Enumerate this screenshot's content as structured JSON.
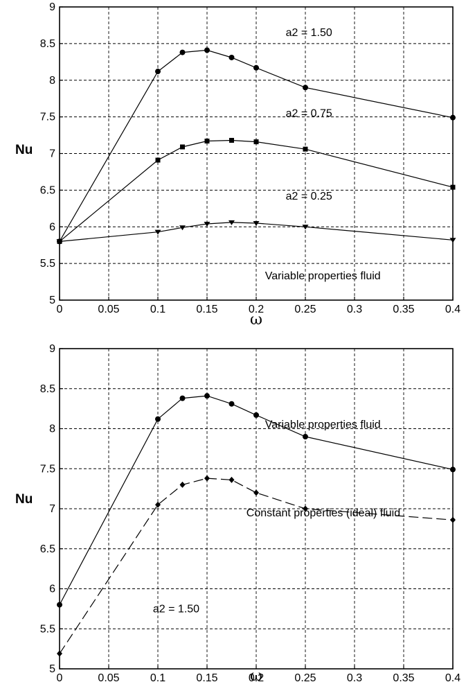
{
  "chart_data": [
    {
      "type": "line",
      "title": "",
      "xlabel": "ω",
      "ylabel": "Nu",
      "xlim": [
        0,
        0.4
      ],
      "ylim": [
        5,
        9
      ],
      "xticks": [
        "0",
        "0.05",
        "0.1",
        "0.15",
        "0.2",
        "0.25",
        "0.3",
        "0.35",
        "0.4"
      ],
      "yticks": [
        "5",
        "5.5",
        "6",
        "6.5",
        "7",
        "7.5",
        "8",
        "8.5",
        "9"
      ],
      "grid": true,
      "series": [
        {
          "name": "a2 = 1.50",
          "marker": "circle",
          "line": "solid",
          "x": [
            0,
            0.1,
            0.125,
            0.15,
            0.175,
            0.2,
            0.25,
            0.4
          ],
          "y": [
            5.8,
            8.12,
            8.38,
            8.41,
            8.31,
            8.17,
            7.9,
            7.49
          ]
        },
        {
          "name": "a2 = 0.75",
          "marker": "square",
          "line": "solid",
          "x": [
            0,
            0.1,
            0.125,
            0.15,
            0.175,
            0.2,
            0.25,
            0.4
          ],
          "y": [
            5.8,
            6.91,
            7.09,
            7.17,
            7.18,
            7.16,
            7.06,
            6.54
          ]
        },
        {
          "name": "a2 = 0.25",
          "marker": "triangle-down",
          "line": "solid",
          "x": [
            0,
            0.1,
            0.125,
            0.15,
            0.175,
            0.2,
            0.25,
            0.4
          ],
          "y": [
            5.8,
            5.93,
            5.99,
            6.04,
            6.06,
            6.05,
            6.0,
            5.82
          ]
        }
      ],
      "annotations": [
        {
          "text": "a2 = 1.50",
          "x": 0.23,
          "y": 8.65
        },
        {
          "text": "a2 = 0.75",
          "x": 0.23,
          "y": 7.55
        },
        {
          "text": "a2 = 0.25",
          "x": 0.23,
          "y": 6.42
        },
        {
          "text": "Variable properties fluid",
          "x": 0.209,
          "y": 5.33
        }
      ]
    },
    {
      "type": "line",
      "title": "",
      "xlabel": "ω",
      "ylabel": "Nu",
      "xlim": [
        0,
        0.4
      ],
      "ylim": [
        5,
        9
      ],
      "xticks": [
        "0",
        "0.05",
        "0.1",
        "0.15",
        "0.2",
        "0.25",
        "0.3",
        "0.35",
        "0.4"
      ],
      "yticks": [
        "5",
        "5.5",
        "6",
        "6.5",
        "7",
        "7.5",
        "8",
        "8.5",
        "9"
      ],
      "grid": true,
      "series": [
        {
          "name": "Variable properties fluid",
          "marker": "circle",
          "line": "solid",
          "x": [
            0,
            0.1,
            0.125,
            0.15,
            0.175,
            0.2,
            0.25,
            0.4
          ],
          "y": [
            5.8,
            8.12,
            8.38,
            8.41,
            8.31,
            8.17,
            7.9,
            7.49
          ]
        },
        {
          "name": "Constant properties (ideal) fluid",
          "marker": "diamond",
          "line": "dashed",
          "x": [
            0,
            0.1,
            0.125,
            0.15,
            0.175,
            0.2,
            0.25,
            0.4
          ],
          "y": [
            5.19,
            7.05,
            7.3,
            7.38,
            7.36,
            7.2,
            7.0,
            6.86
          ]
        }
      ],
      "annotations": [
        {
          "text": "Variable properties fluid",
          "x": 0.209,
          "y": 8.05
        },
        {
          "text": "Constant properties (ideal) fluid",
          "x": 0.19,
          "y": 6.95
        },
        {
          "text": "a2 = 1.50",
          "x": 0.095,
          "y": 5.75
        }
      ]
    }
  ]
}
